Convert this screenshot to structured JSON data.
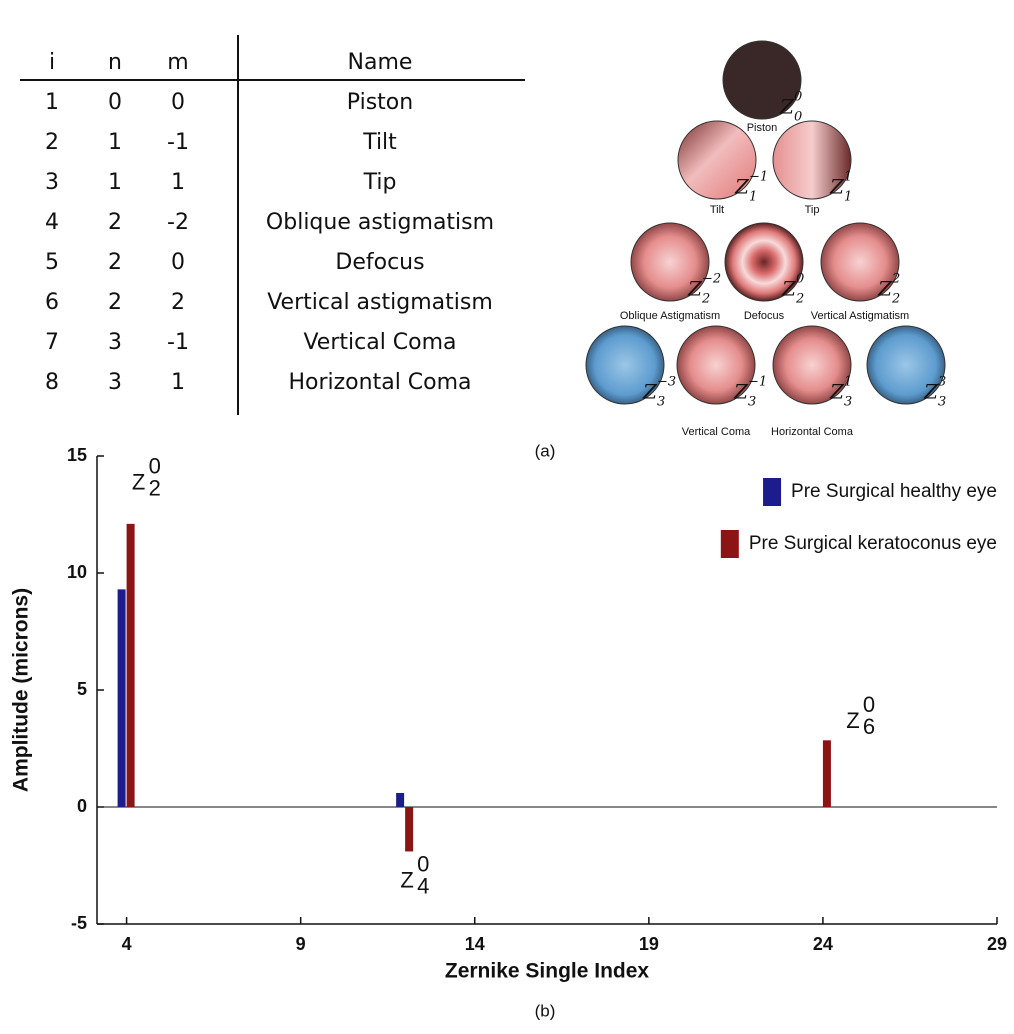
{
  "table": {
    "header": [
      "i",
      "n",
      "m",
      "Name"
    ],
    "rows": [
      [
        "1",
        "0",
        "0",
        "Piston"
      ],
      [
        "2",
        "1",
        "-1",
        "Tilt"
      ],
      [
        "3",
        "1",
        "1",
        "Tip"
      ],
      [
        "4",
        "2",
        "-2",
        "Oblique astigmatism"
      ],
      [
        "5",
        "2",
        "0",
        "Defocus"
      ],
      [
        "6",
        "2",
        "2",
        "Vertical astigmatism"
      ],
      [
        "7",
        "3",
        "-1",
        "Vertical Coma"
      ],
      [
        "8",
        "3",
        "1",
        "Horizontal Coma"
      ]
    ]
  },
  "pyramid": {
    "symbol": "Z",
    "rows": [
      [
        {
          "label": "Piston",
          "n": "0",
          "m": "0"
        }
      ],
      [
        {
          "label": "Tilt",
          "n": "1",
          "m": "−1"
        },
        {
          "label": "Tip",
          "n": "1",
          "m": "1"
        }
      ],
      [
        {
          "label": "Oblique Astigmatism",
          "n": "2",
          "m": "−2"
        },
        {
          "label": "Defocus",
          "n": "2",
          "m": "0"
        },
        {
          "label": "Vertical Astigmatism",
          "n": "2",
          "m": "2"
        }
      ],
      [
        {
          "label": null,
          "n": "3",
          "m": "−3"
        },
        {
          "label": "Vertical Coma",
          "n": "3",
          "m": "−1"
        },
        {
          "label": "Horizontal Coma",
          "n": "3",
          "m": "1"
        },
        {
          "label": null,
          "n": "3",
          "m": "3"
        }
      ]
    ],
    "caption": "(a)"
  },
  "chart_data": {
    "type": "bar",
    "x_label": "Zernike Single Index",
    "y_label": "Amplitude (microns)",
    "x": [
      4,
      12,
      24
    ],
    "series": [
      {
        "name": "Pre Surgical healthy eye",
        "color": "#1c1c8e",
        "values": [
          9.3,
          0.6,
          0
        ]
      },
      {
        "name": "Pre Surgical keratoconus eye",
        "color": "#8c1414",
        "values": [
          12.1,
          -1.9,
          2.85
        ]
      }
    ],
    "point_labels": [
      {
        "base": "Z",
        "sub": "2",
        "sup": "0"
      },
      {
        "base": "Z",
        "sub": "4",
        "sup": "0"
      },
      {
        "base": "Z",
        "sub": "6",
        "sup": "0"
      }
    ],
    "xlim": [
      3.15,
      29
    ],
    "ylim": [
      -5,
      15
    ],
    "xticks": [
      4,
      9,
      14,
      19,
      24,
      29
    ],
    "yticks": [
      -5,
      0,
      5,
      10,
      15
    ],
    "grid": false,
    "legend": "upper right",
    "caption": "(b)"
  }
}
